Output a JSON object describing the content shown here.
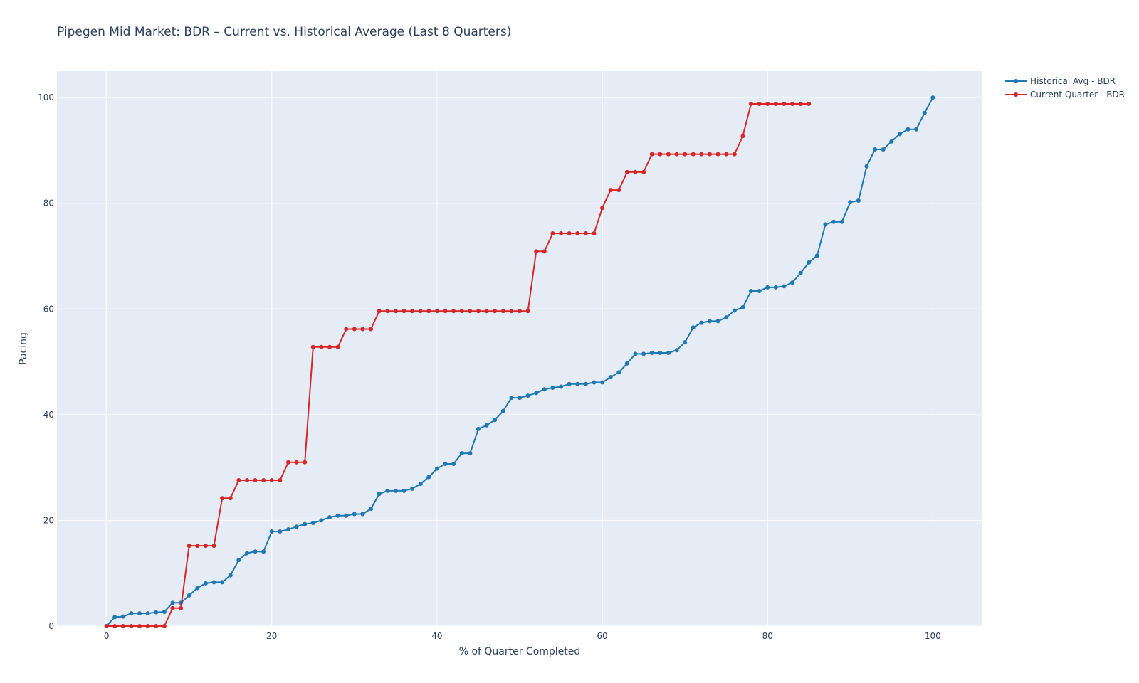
{
  "chart_data": {
    "type": "line",
    "title": "Pipegen Mid Market: BDR – Current vs. Historical Average (Last 8 Quarters)",
    "xlabel": "% of Quarter Completed",
    "ylabel": "Pacing",
    "xlim": [
      -6,
      106
    ],
    "ylim": [
      0,
      105
    ],
    "xticks": [
      0,
      20,
      40,
      60,
      80,
      100
    ],
    "yticks": [
      0,
      20,
      40,
      60,
      80,
      100
    ],
    "grid": true,
    "legend_position": "top-right",
    "series": [
      {
        "name": "Historical Avg - BDR",
        "color": "#1f77b4",
        "x": [
          0,
          1,
          2,
          3,
          4,
          5,
          6,
          7,
          8,
          9,
          10,
          11,
          12,
          13,
          14,
          15,
          16,
          17,
          18,
          19,
          20,
          21,
          22,
          23,
          24,
          25,
          26,
          27,
          28,
          29,
          30,
          31,
          32,
          33,
          34,
          35,
          36,
          37,
          38,
          39,
          40,
          41,
          42,
          43,
          44,
          45,
          46,
          47,
          48,
          49,
          50,
          51,
          52,
          53,
          54,
          55,
          56,
          57,
          58,
          59,
          60,
          61,
          62,
          63,
          64,
          65,
          66,
          67,
          68,
          69,
          70,
          71,
          72,
          73,
          74,
          75,
          76,
          77,
          78,
          79,
          80,
          81,
          82,
          83,
          84,
          85,
          86,
          87,
          88,
          89,
          90,
          91,
          92,
          93,
          94,
          95,
          96,
          97,
          98,
          99,
          100
        ],
        "values": [
          0,
          1.7,
          1.8,
          2.4,
          2.4,
          2.4,
          2.6,
          2.7,
          4.4,
          4.4,
          5.8,
          7.2,
          8.1,
          8.3,
          8.3,
          9.6,
          12.5,
          13.8,
          14.1,
          14.1,
          17.9,
          17.9,
          18.3,
          18.8,
          19.3,
          19.5,
          20,
          20.6,
          20.9,
          20.9,
          21.2,
          21.2,
          22.2,
          25,
          25.6,
          25.6,
          25.6,
          26,
          26.9,
          28.2,
          29.8,
          30.7,
          30.7,
          32.7,
          32.7,
          37.3,
          38,
          39,
          40.7,
          43.2,
          43.2,
          43.6,
          44.1,
          44.8,
          45.1,
          45.3,
          45.8,
          45.8,
          45.8,
          46.1,
          46.1,
          47.1,
          48,
          49.7,
          51.5,
          51.5,
          51.7,
          51.7,
          51.7,
          52.2,
          53.7,
          56.5,
          57.4,
          57.7,
          57.7,
          58.4,
          59.7,
          60.3,
          63.4,
          63.4,
          64.1,
          64.1,
          64.3,
          65,
          66.8,
          68.8,
          70.1,
          76,
          76.5,
          76.5,
          80.2,
          80.5,
          87,
          90.2,
          90.2,
          91.7,
          93.1,
          94,
          94,
          97.1,
          100
        ]
      },
      {
        "name": "Current Quarter - BDR",
        "color": "#d62728",
        "x": [
          0,
          1,
          2,
          3,
          4,
          5,
          6,
          7,
          8,
          9,
          10,
          11,
          12,
          13,
          14,
          15,
          16,
          17,
          18,
          19,
          20,
          21,
          22,
          23,
          24,
          25,
          26,
          27,
          28,
          29,
          30,
          31,
          32,
          33,
          34,
          35,
          36,
          37,
          38,
          39,
          40,
          41,
          42,
          43,
          44,
          45,
          46,
          47,
          48,
          49,
          50,
          51,
          52,
          53,
          54,
          55,
          56,
          57,
          58,
          59,
          60,
          61,
          62,
          63,
          64,
          65,
          66,
          67,
          68,
          69,
          70,
          71,
          72,
          73,
          74,
          75,
          76,
          77,
          78,
          79,
          80,
          81,
          82,
          83,
          84,
          85
        ],
        "values": [
          0,
          0,
          0,
          0,
          0,
          0,
          0,
          0,
          3.4,
          3.4,
          15.2,
          15.2,
          15.2,
          15.2,
          24.2,
          24.2,
          27.6,
          27.6,
          27.6,
          27.6,
          27.6,
          27.6,
          31,
          31,
          31,
          52.8,
          52.8,
          52.8,
          52.8,
          56.2,
          56.2,
          56.2,
          56.2,
          59.6,
          59.6,
          59.6,
          59.6,
          59.6,
          59.6,
          59.6,
          59.6,
          59.6,
          59.6,
          59.6,
          59.6,
          59.6,
          59.6,
          59.6,
          59.6,
          59.6,
          59.6,
          59.6,
          70.9,
          70.9,
          74.3,
          74.3,
          74.3,
          74.3,
          74.3,
          74.3,
          79.1,
          82.5,
          82.5,
          85.9,
          85.9,
          85.9,
          89.3,
          89.3,
          89.3,
          89.3,
          89.3,
          89.3,
          89.3,
          89.3,
          89.3,
          89.3,
          89.3,
          92.7,
          98.8,
          98.8,
          98.8,
          98.8,
          98.8,
          98.8,
          98.8,
          98.8
        ]
      }
    ]
  }
}
